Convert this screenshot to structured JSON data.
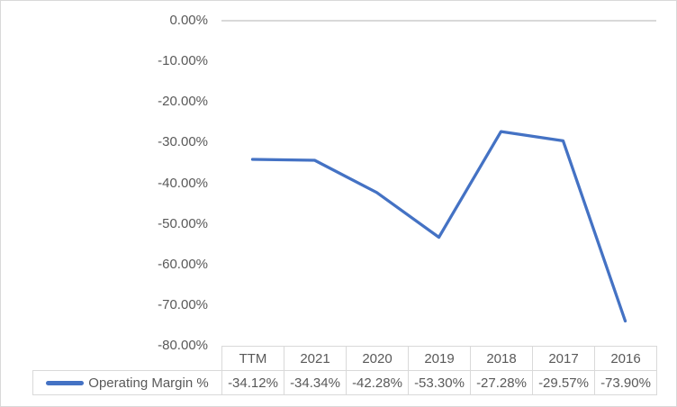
{
  "chart_data": {
    "type": "line",
    "title": "",
    "xlabel": "",
    "ylabel": "",
    "categories": [
      "TTM",
      "2021",
      "2020",
      "2019",
      "2018",
      "2017",
      "2016"
    ],
    "series": [
      {
        "name": "Operating Margin %",
        "values": [
          -34.12,
          -34.34,
          -42.28,
          -53.3,
          -27.28,
          -29.57,
          -73.9
        ],
        "values_formatted": [
          "-34.12%",
          "-34.34%",
          "-42.28%",
          "-53.30%",
          "-27.28%",
          "-29.57%",
          "-73.90%"
        ],
        "color": "#4472C4"
      }
    ],
    "y_axis": {
      "tick_labels": [
        "0.00%",
        "-10.00%",
        "-20.00%",
        "-30.00%",
        "-40.00%",
        "-50.00%",
        "-60.00%",
        "-70.00%",
        "-80.00%"
      ],
      "min": -80,
      "max": 0
    },
    "grid": "axis-line-at-zero-only",
    "legend_position": "data-table-left"
  },
  "colors": {
    "line": "#4472C4",
    "border": "#D9D9D9",
    "text": "#595959",
    "background": "#FFFFFF"
  }
}
